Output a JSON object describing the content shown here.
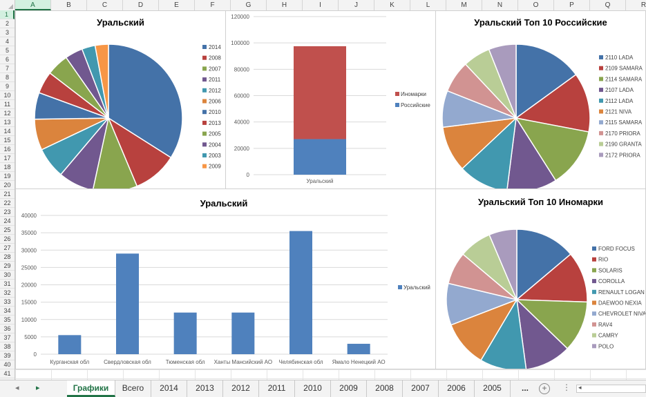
{
  "columns": [
    "A",
    "B",
    "C",
    "D",
    "E",
    "F",
    "G",
    "H",
    "I",
    "J",
    "K",
    "L",
    "M",
    "N",
    "O",
    "P",
    "Q",
    "R"
  ],
  "rows": [
    "1",
    "2",
    "3",
    "4",
    "5",
    "6",
    "7",
    "8",
    "9",
    "10",
    "11",
    "12",
    "13",
    "14",
    "15",
    "16",
    "17",
    "18",
    "19",
    "20",
    "21",
    "22",
    "23",
    "24",
    "25",
    "26",
    "27",
    "28",
    "29",
    "30",
    "31",
    "32",
    "33",
    "34",
    "35",
    "36",
    "37",
    "38",
    "39",
    "40",
    "41"
  ],
  "sheet_tabs": {
    "nav_prev": "◂",
    "nav_next": "▸",
    "items": [
      "Графики",
      "Всего",
      "2014",
      "2013",
      "2012",
      "2011",
      "2010",
      "2009",
      "2008",
      "2007",
      "2006",
      "2005"
    ],
    "active": 0,
    "more": "...",
    "add": "+",
    "options": "⋮",
    "scroll_left": "◂"
  },
  "colors": {
    "palette": [
      "#4472A8",
      "#B8413E",
      "#89A54E",
      "#71588F",
      "#4198AF",
      "#DB843D",
      "#93A9CF",
      "#D19392",
      "#B9CD96",
      "#A99BBD"
    ],
    "accent": "#217346"
  },
  "chart_data": [
    {
      "id": "pie_years",
      "type": "pie",
      "title": "Уральский",
      "labels": [
        "2014",
        "2008",
        "2007",
        "2011",
        "2012",
        "2006",
        "2010",
        "2013",
        "2005",
        "2004",
        "2003",
        "2009"
      ],
      "values": [
        35,
        10,
        10,
        8,
        7,
        7,
        6,
        5,
        5,
        4,
        3,
        3
      ],
      "colors": [
        "#4472A8",
        "#B8413E",
        "#89A54E",
        "#71588F",
        "#4198AF",
        "#DB843D",
        "#4472A8",
        "#B8413E",
        "#89A54E",
        "#71588F",
        "#4198AF",
        "#F79646"
      ],
      "legend": "right"
    },
    {
      "id": "stacked_bar",
      "type": "bar",
      "stacked": true,
      "categories": [
        "Уральский"
      ],
      "series": [
        {
          "name": "Российские",
          "values": [
            27000
          ],
          "color": "#4F81BD"
        },
        {
          "name": "Иномарки",
          "values": [
            70500
          ],
          "color": "#C0504D"
        }
      ],
      "ylim": [
        0,
        120000
      ],
      "yticks": [
        "0",
        "20000",
        "40000",
        "60000",
        "80000",
        "100000",
        "120000"
      ],
      "legend_order": [
        "Иномарки",
        "Российские"
      ],
      "grid": true,
      "legend": "right"
    },
    {
      "id": "pie_top10_ru",
      "type": "pie",
      "title": "Уральский Топ 10 Российские",
      "labels": [
        "2110 LADA",
        "2109 SAMARA",
        "2114 SAMARA",
        "2107 LADA",
        "2112 LADA",
        "2121 NIVA",
        "2115 SAMARA",
        "2170 PRIORA",
        "2190 GRANTA",
        "2172 PRIORA"
      ],
      "values": [
        15,
        13,
        13,
        11,
        11,
        10,
        8,
        7,
        6,
        6
      ],
      "colors": [
        "#4472A8",
        "#B8413E",
        "#89A54E",
        "#71588F",
        "#4198AF",
        "#DB843D",
        "#93A9CF",
        "#D19392",
        "#B9CD96",
        "#A99BBD"
      ],
      "legend": "right"
    },
    {
      "id": "bar_regions",
      "type": "bar",
      "title": "Уральский",
      "categories": [
        "Курганская обл",
        "Свердловская обл",
        "Тюменская обл",
        "Ханты Мансийский АО",
        "Челябинская обл",
        "Ямало Ненецкий АО"
      ],
      "series": [
        {
          "name": "Уральский",
          "values": [
            5500,
            29000,
            12000,
            12000,
            35500,
            3000
          ],
          "color": "#4F81BD"
        }
      ],
      "ylim": [
        0,
        40000
      ],
      "yticks": [
        "0",
        "5000",
        "10000",
        "15000",
        "20000",
        "25000",
        "30000",
        "35000",
        "40000"
      ],
      "grid": true,
      "legend": "right"
    },
    {
      "id": "pie_top10_foreign",
      "type": "pie",
      "title": "Уральский Топ 10 Иномарки",
      "labels": [
        "FORD FOCUS",
        "RIO",
        "SOLARIS",
        "COROLLA",
        "RENAULT LOGAN",
        "DAEWOO NEXIA",
        "CHEVROLET NIVA",
        "RAV4",
        "CAMRY",
        "POLO"
      ],
      "values": [
        13,
        11,
        11,
        10,
        10,
        10,
        9,
        7,
        7,
        6
      ],
      "colors": [
        "#4472A8",
        "#B8413E",
        "#89A54E",
        "#71588F",
        "#4198AF",
        "#DB843D",
        "#93A9CF",
        "#D19392",
        "#B9CD96",
        "#A99BBD"
      ],
      "legend": "right"
    }
  ]
}
